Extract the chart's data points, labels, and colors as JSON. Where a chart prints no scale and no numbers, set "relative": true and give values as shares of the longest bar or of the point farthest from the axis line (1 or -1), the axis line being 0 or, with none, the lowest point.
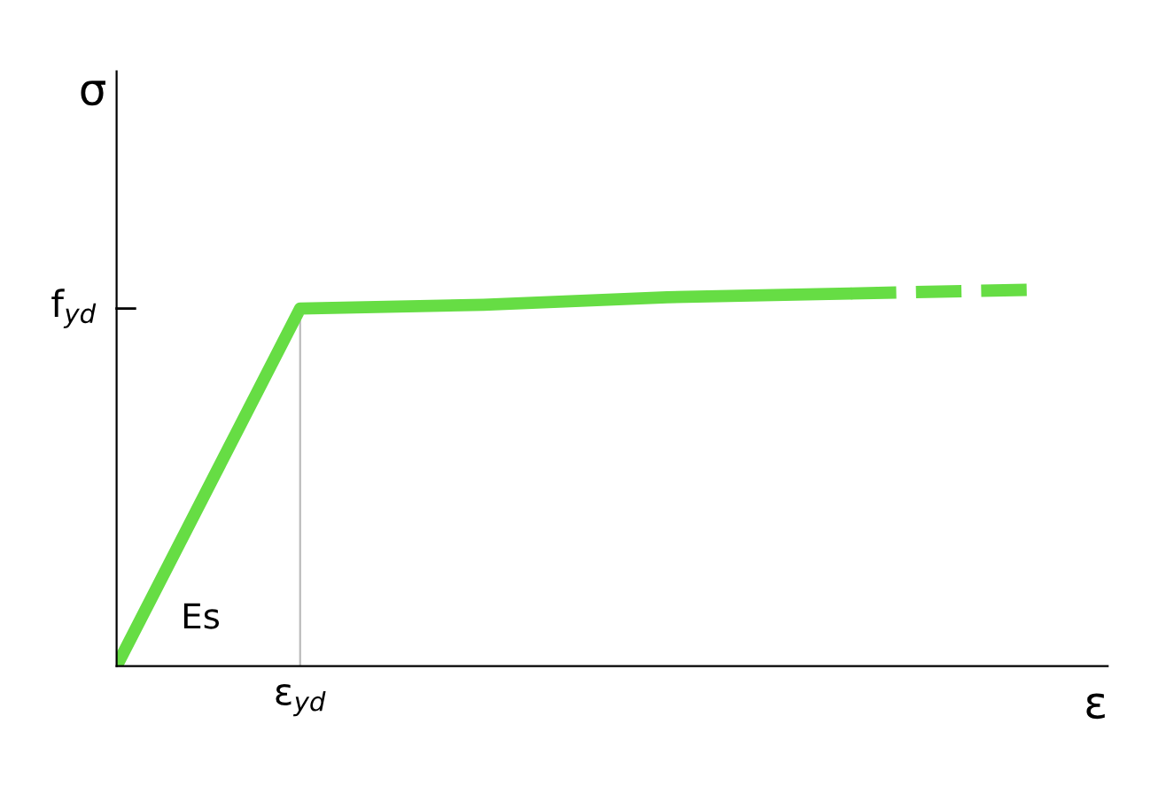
{
  "chart_data": {
    "type": "line",
    "xlabel": "ε",
    "ylabel": "σ",
    "relative": true,
    "categories": [
      null,
      null,
      null,
      null,
      null,
      null
    ],
    "series": [
      {
        "color": "#66dd44",
        "values": [
          0,
          0.95,
          0.96,
          0.98,
          0.99,
          null
        ],
        "line_style": "solid"
      },
      {
        "color": "#66dd44",
        "values": [
          null,
          null,
          null,
          null,
          0.99,
          1.0
        ],
        "line_style": "dashed"
      }
    ],
    "annotations": [
      "f$_{yd}$",
      "ε$_{yd}$",
      "Es"
    ],
    "legend": false
  }
}
